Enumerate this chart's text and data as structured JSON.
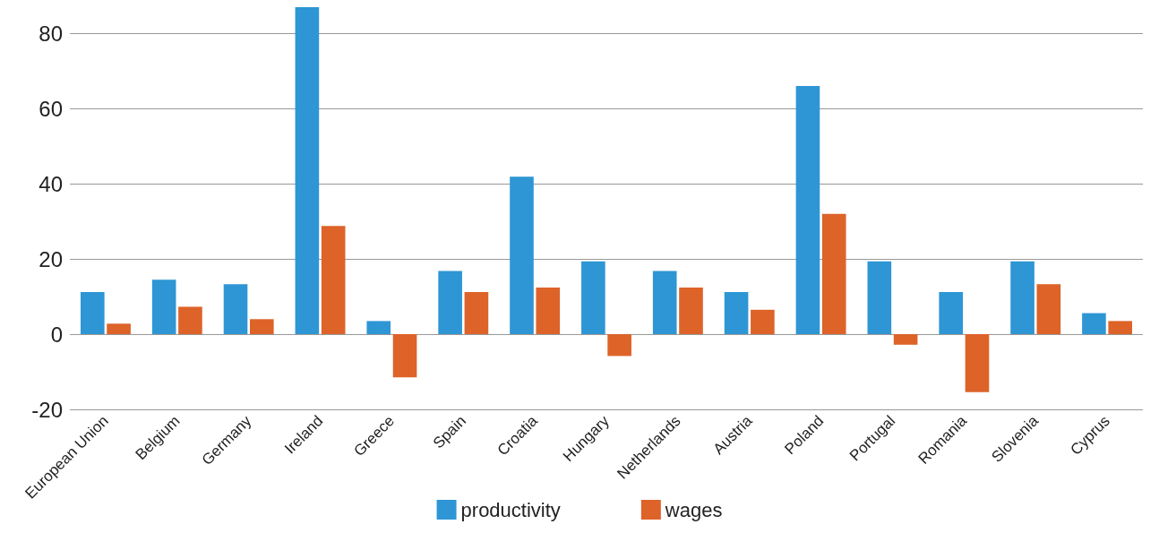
{
  "chart_data": {
    "type": "bar",
    "categories": [
      "European Union",
      "Belgium",
      "Germany",
      "Ireland",
      "Greece",
      "Spain",
      "Croatia",
      "Hungary",
      "Netherlands",
      "Austria",
      "Poland",
      "Portugal",
      "Romania",
      "Slovenia",
      "Cyprus"
    ],
    "series": [
      {
        "name": "productivity",
        "color": "#2e96d4",
        "values": [
          11.2,
          14.5,
          13.3,
          87,
          3.5,
          16.8,
          41.9,
          19.4,
          16.8,
          11.2,
          66.0,
          19.4,
          11.2,
          19.4,
          5.6
        ]
      },
      {
        "name": "wages",
        "color": "#dd6329",
        "values": [
          2.8,
          7.3,
          4.0,
          28.8,
          -11.5,
          11.2,
          12.4,
          -5.8,
          12.4,
          6.5,
          32.0,
          -2.8,
          -15.4,
          13.3,
          3.5
        ]
      }
    ],
    "ylim": [
      -20,
      87
    ],
    "yticks": [
      -20,
      0,
      20,
      40,
      60,
      80
    ],
    "grid": "y",
    "legend": "bottom"
  }
}
